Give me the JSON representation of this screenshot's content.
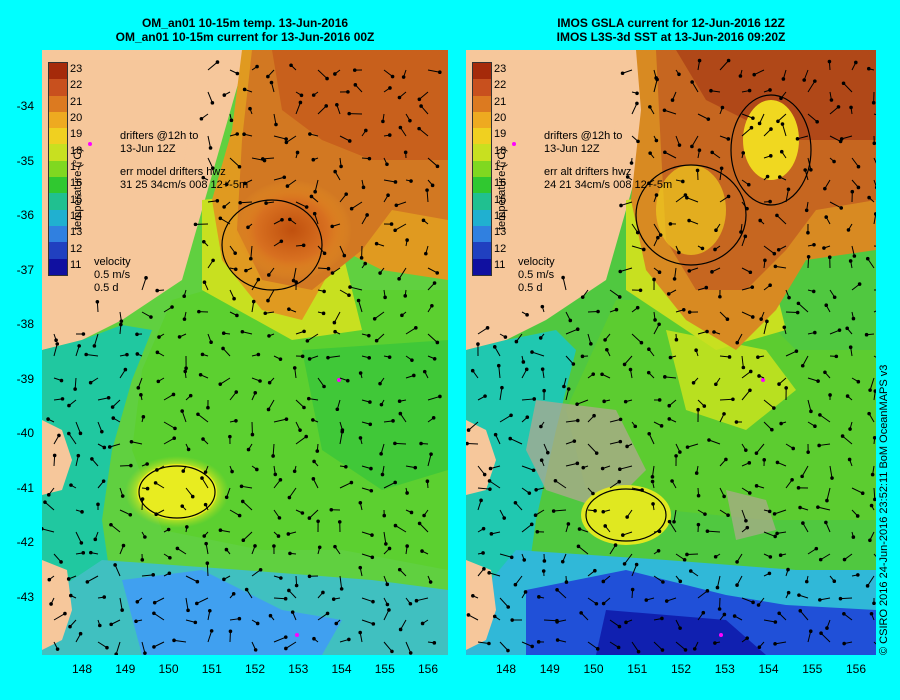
{
  "left_panel": {
    "title_line1": "OM_an01 10-15m temp. 13-Jun-2016",
    "title_line2": "OM_an01 10-15m current for 13-Jun-2016 00Z",
    "drifters_line1": "drifters @12h to",
    "drifters_line2": "13-Jun 12Z",
    "err_line1": "err model drifters hwz",
    "err_line2": "31 25 34cm/s 008 12+-5m",
    "velocity_title": "velocity",
    "velocity_speed": "0.5 m/s",
    "velocity_time": "0.5 d"
  },
  "right_panel": {
    "title_line1": "IMOS GSLA current for 12-Jun-2016 12Z",
    "title_line2": "IMOS L3S-3d SST at 13-Jun-2016 09:20Z",
    "drifters_line1": "drifters @12h to",
    "drifters_line2": "13-Jun 12Z",
    "err_line1": "err alt drifters hwz",
    "err_line2": "24 21 34cm/s 008 12+-5m",
    "velocity_title": "velocity",
    "velocity_speed": "0.5 m/s",
    "velocity_time": "0.5 d"
  },
  "colorbar": {
    "title": "temperature (°C)",
    "ticks": [
      "23",
      "22",
      "21",
      "20",
      "19",
      "18",
      "17",
      "16",
      "15",
      "14",
      "13",
      "12",
      "11"
    ],
    "colors": [
      "#a52a0a",
      "#c8501e",
      "#dc7a20",
      "#eeaa20",
      "#f0d020",
      "#c8e020",
      "#80d820",
      "#30c830",
      "#20c090",
      "#20b0d0",
      "#3080e0",
      "#2040c0",
      "#1010a0"
    ]
  },
  "latitude_labels": [
    "-34",
    "-35",
    "-36",
    "-37",
    "-38",
    "-39",
    "-40",
    "-41",
    "-42",
    "-43"
  ],
  "longitude_labels": [
    "148",
    "149",
    "150",
    "151",
    "152",
    "153",
    "154",
    "155",
    "156"
  ],
  "credit": "© CSIRO 2016   24-Jun-2016 23:52:11 BoM OceanMAPS v3",
  "colors": {
    "background": "#00ffff",
    "land": "#f6c79b",
    "drifter_magenta": "#ff00ff"
  }
}
